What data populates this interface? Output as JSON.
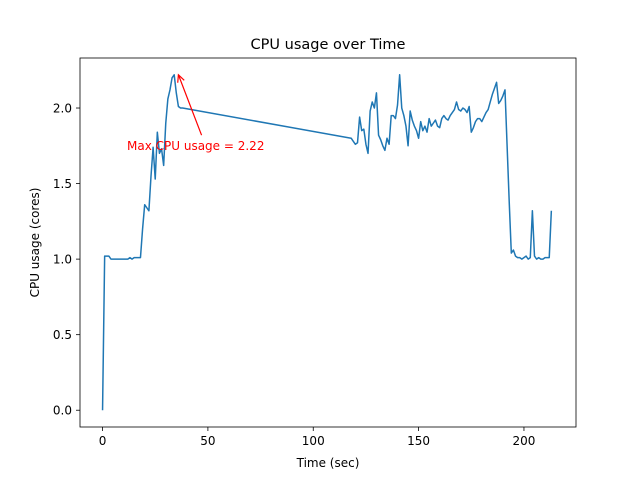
{
  "chart_data": {
    "type": "line",
    "title": "CPU usage over Time",
    "xlabel": "Time (sec)",
    "ylabel": "CPU usage (cores)",
    "xlim": [
      -10.7,
      224.7
    ],
    "ylim": [
      -0.111,
      2.331
    ],
    "xticks": [
      0,
      50,
      100,
      150,
      200
    ],
    "xtick_labels": [
      "0",
      "50",
      "100",
      "150",
      "200"
    ],
    "yticks": [
      0.0,
      0.5,
      1.0,
      1.5,
      2.0
    ],
    "ytick_labels": [
      "0.0",
      "0.5",
      "1.0",
      "1.5",
      "2.0"
    ],
    "grid": false,
    "series": [
      {
        "color": "#1f77b4",
        "x": [
          0,
          1,
          2,
          3,
          4,
          5,
          6,
          7,
          8,
          9,
          10,
          11,
          12,
          13,
          14,
          15,
          16,
          17,
          18,
          19,
          20,
          21,
          22,
          23,
          24,
          25,
          26,
          27,
          28,
          29,
          30,
          31,
          32,
          33,
          34,
          35,
          36,
          37,
          38,
          118,
          119,
          120,
          121,
          122,
          123,
          124,
          125,
          126,
          127,
          128,
          129,
          130,
          131,
          132,
          133,
          134,
          135,
          136,
          137,
          138,
          139,
          140,
          141,
          142,
          143,
          144,
          145,
          146,
          147,
          148,
          149,
          150,
          151,
          152,
          153,
          154,
          155,
          156,
          157,
          158,
          159,
          160,
          161,
          162,
          163,
          164,
          165,
          166,
          167,
          168,
          169,
          170,
          171,
          172,
          173,
          174,
          175,
          176,
          177,
          178,
          179,
          180,
          181,
          182,
          183,
          184,
          185,
          186,
          187,
          188,
          189,
          190,
          191,
          192,
          193,
          194,
          195,
          196,
          197,
          198,
          199,
          200,
          201,
          202,
          203,
          204,
          205,
          206,
          207,
          208,
          209,
          210,
          211,
          212,
          213
        ],
        "y": [
          0.0,
          1.02,
          1.02,
          1.02,
          1.0,
          1.0,
          1.0,
          1.0,
          1.0,
          1.0,
          1.0,
          1.0,
          1.0,
          1.01,
          1.0,
          1.01,
          1.01,
          1.01,
          1.01,
          1.2,
          1.36,
          1.34,
          1.32,
          1.55,
          1.74,
          1.53,
          1.84,
          1.7,
          1.73,
          1.62,
          1.9,
          2.06,
          2.12,
          2.2,
          2.22,
          2.1,
          2.01,
          2.0,
          2.0,
          1.8,
          1.78,
          1.76,
          1.77,
          1.94,
          1.85,
          1.86,
          1.76,
          1.7,
          1.98,
          2.04,
          2.0,
          2.1,
          1.82,
          1.79,
          1.75,
          1.72,
          1.8,
          1.76,
          1.95,
          1.95,
          1.93,
          2.02,
          2.22,
          2.0,
          1.95,
          1.88,
          1.75,
          1.98,
          1.92,
          1.88,
          1.85,
          1.8,
          1.91,
          1.85,
          1.88,
          1.84,
          1.93,
          1.88,
          1.9,
          1.92,
          1.88,
          1.87,
          1.93,
          1.95,
          1.93,
          1.92,
          1.95,
          1.97,
          1.99,
          2.04,
          1.99,
          1.98,
          2.0,
          1.99,
          1.97,
          2.01,
          1.84,
          1.87,
          1.91,
          1.93,
          1.93,
          1.91,
          1.94,
          1.97,
          1.99,
          2.04,
          2.09,
          2.13,
          2.17,
          2.03,
          2.05,
          2.08,
          2.12,
          1.75,
          1.38,
          1.04,
          1.06,
          1.02,
          1.01,
          1.01,
          1.0,
          1.01,
          1.02,
          1.0,
          1.01,
          1.32,
          1.02,
          1.0,
          1.01,
          1.0,
          1.0,
          1.01,
          1.01,
          1.01,
          1.32
        ],
        "note_points": "x values 0–38, 118–213 (gap 38→118 drawn as straight segment)"
      }
    ],
    "annotation": {
      "text": "Max CPU usage = 2.22",
      "color": "#ff0000",
      "point": [
        36,
        2.22
      ],
      "text_anchor_data": [
        47,
        1.82
      ]
    }
  }
}
